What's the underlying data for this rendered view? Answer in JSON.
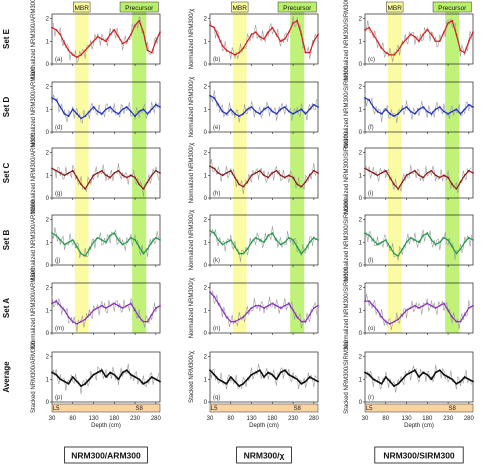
{
  "figure": {
    "row_labels": [
      "Set E",
      "Set D",
      "Set C",
      "Set B",
      "Set A",
      "Average"
    ],
    "column_footers": [
      "NRM300/ARM300",
      "NRM300/χ",
      "NRM300/SIRM300"
    ],
    "highlights": [
      {
        "label": "MBR",
        "x_range": [
          85,
          118
        ],
        "color": "#fbfb9a"
      },
      {
        "label": "Precursor",
        "x_range": [
          223,
          257
        ],
        "color": "#b9f06a"
      }
    ],
    "x_axis": {
      "label": "Depth (cm)",
      "ticks": [
        30,
        80,
        130,
        180,
        230,
        280
      ],
      "range": [
        30,
        290
      ]
    },
    "stage_bar": {
      "labels": [
        {
          "text": "L5",
          "x": 40
        },
        {
          "text": "S8",
          "x": 240
        }
      ],
      "color": "#f9d3a0"
    },
    "colors": {
      "Set E": "#d42020",
      "Set D": "#1f2fbf",
      "Set C": "#8b1a1a",
      "Set B": "#1d9a4a",
      "Set A": "#8a2fbf",
      "Average": "#111111",
      "raw": "#9a9a9a"
    }
  },
  "chart_data": {
    "type": "line",
    "x": [
      30,
      40,
      50,
      60,
      70,
      80,
      90,
      100,
      110,
      120,
      130,
      140,
      150,
      160,
      170,
      180,
      190,
      200,
      210,
      220,
      230,
      240,
      250,
      260,
      270,
      280,
      290
    ],
    "panels": [
      {
        "id": "a",
        "row": "Set E",
        "col": 0,
        "ylabel": "Normalized NRM300/ARM300",
        "yticks": [
          0,
          1,
          2
        ],
        "ylim": [
          0,
          2.2
        ],
        "smooth": [
          1.6,
          1.5,
          1.3,
          0.9,
          0.6,
          0.4,
          0.3,
          0.4,
          0.6,
          0.8,
          1.0,
          1.2,
          1.1,
          1.0,
          1.3,
          1.5,
          1.2,
          0.9,
          1.0,
          1.3,
          1.7,
          1.9,
          1.4,
          0.6,
          0.5,
          1.0,
          1.4
        ]
      },
      {
        "id": "b",
        "row": "Set E",
        "col": 1,
        "ylabel": "Normalized NRM300/χ",
        "yticks": [
          0,
          1,
          2
        ],
        "ylim": [
          0,
          2.2
        ],
        "smooth": [
          1.7,
          1.6,
          1.2,
          0.8,
          0.6,
          0.5,
          0.4,
          0.5,
          0.7,
          1.0,
          1.3,
          1.4,
          1.2,
          1.1,
          1.4,
          1.6,
          1.3,
          1.0,
          1.1,
          1.4,
          1.8,
          1.9,
          1.3,
          0.5,
          0.5,
          1.0,
          1.3
        ]
      },
      {
        "id": "c",
        "row": "Set E",
        "col": 2,
        "ylabel": "Normalized NRM300/SIRM300",
        "yticks": [
          0,
          1,
          2
        ],
        "ylim": [
          0,
          2.2
        ],
        "smooth": [
          1.5,
          1.6,
          1.3,
          1.0,
          0.7,
          0.5,
          0.4,
          0.4,
          0.6,
          0.9,
          1.1,
          1.3,
          1.2,
          1.0,
          1.3,
          1.5,
          1.3,
          1.0,
          1.0,
          1.4,
          1.8,
          1.9,
          1.3,
          0.6,
          0.5,
          1.0,
          1.4
        ]
      },
      {
        "id": "d",
        "row": "Set D",
        "col": 0,
        "ylabel": "Normalized NRM300/ARM300",
        "yticks": [
          0,
          1,
          2
        ],
        "ylim": [
          0,
          2.2
        ],
        "smooth": [
          1.5,
          1.4,
          1.1,
          0.8,
          0.7,
          1.0,
          0.8,
          0.6,
          0.7,
          0.9,
          1.1,
          0.9,
          0.8,
          1.0,
          1.1,
          0.9,
          0.8,
          1.0,
          1.1,
          0.9,
          0.7,
          0.9,
          1.0,
          0.8,
          1.0,
          1.2,
          1.1
        ]
      },
      {
        "id": "e",
        "row": "Set D",
        "col": 1,
        "ylabel": "Normalized NRM300/χ",
        "yticks": [
          0,
          1,
          2
        ],
        "ylim": [
          0,
          2.2
        ],
        "smooth": [
          1.6,
          1.5,
          1.2,
          0.9,
          0.8,
          1.0,
          0.8,
          0.7,
          0.8,
          1.0,
          1.1,
          0.9,
          0.8,
          1.0,
          1.1,
          0.9,
          0.8,
          1.0,
          1.1,
          0.9,
          0.8,
          0.9,
          1.0,
          0.8,
          1.0,
          1.2,
          1.1
        ]
      },
      {
        "id": "f",
        "row": "Set D",
        "col": 2,
        "ylabel": "Normalized NRM300/SIRM300",
        "yticks": [
          0,
          1,
          2
        ],
        "ylim": [
          0,
          2.2
        ],
        "smooth": [
          1.5,
          1.4,
          1.1,
          0.9,
          0.8,
          1.0,
          0.8,
          0.7,
          0.8,
          1.0,
          1.1,
          0.9,
          0.8,
          1.0,
          1.1,
          0.9,
          0.8,
          1.0,
          1.1,
          0.9,
          0.8,
          0.9,
          1.0,
          0.8,
          1.0,
          1.2,
          1.1
        ]
      },
      {
        "id": "g",
        "row": "Set C",
        "col": 0,
        "ylabel": "Normalized NRM300/ARM300",
        "yticks": [
          0,
          1,
          2
        ],
        "ylim": [
          0,
          2.2
        ],
        "smooth": [
          1.3,
          1.2,
          1.1,
          1.0,
          1.1,
          1.2,
          0.9,
          0.6,
          0.4,
          0.7,
          1.0,
          1.1,
          1.2,
          1.0,
          0.9,
          1.1,
          1.2,
          1.0,
          0.9,
          1.0,
          0.9,
          0.6,
          0.4,
          0.7,
          1.0,
          1.2,
          1.1
        ]
      },
      {
        "id": "h",
        "row": "Set C",
        "col": 1,
        "ylabel": "Normalized NRM300/χ",
        "yticks": [
          0,
          1,
          2
        ],
        "ylim": [
          0,
          2.2
        ],
        "smooth": [
          1.4,
          1.3,
          1.1,
          1.0,
          1.1,
          1.2,
          0.9,
          0.6,
          0.5,
          0.7,
          1.0,
          1.1,
          1.2,
          1.0,
          0.9,
          1.1,
          1.2,
          1.0,
          0.9,
          1.0,
          0.9,
          0.6,
          0.5,
          0.7,
          1.0,
          1.2,
          1.1
        ]
      },
      {
        "id": "i",
        "row": "Set C",
        "col": 2,
        "ylabel": "Normalized NRM300/SIRM300",
        "yticks": [
          0,
          1,
          2
        ],
        "ylim": [
          0,
          2.2
        ],
        "smooth": [
          1.3,
          1.2,
          1.1,
          1.0,
          1.1,
          1.2,
          0.9,
          0.6,
          0.4,
          0.7,
          1.0,
          1.1,
          1.2,
          1.0,
          0.9,
          1.1,
          1.2,
          1.0,
          0.9,
          1.0,
          0.9,
          0.6,
          0.4,
          0.7,
          1.0,
          1.2,
          1.1
        ]
      },
      {
        "id": "j",
        "row": "Set B",
        "col": 0,
        "ylabel": "Normalized NRM300/ARM300",
        "yticks": [
          0,
          1,
          2
        ],
        "ylim": [
          0,
          2.2
        ],
        "smooth": [
          1.4,
          1.3,
          1.1,
          0.9,
          1.0,
          1.1,
          0.8,
          0.5,
          0.4,
          0.7,
          1.0,
          1.2,
          1.1,
          1.0,
          1.3,
          1.4,
          1.1,
          0.9,
          1.0,
          1.2,
          1.1,
          0.8,
          0.5,
          0.7,
          1.0,
          1.2,
          1.1
        ]
      },
      {
        "id": "k",
        "row": "Set B",
        "col": 1,
        "ylabel": "Normalized NRM300/χ",
        "yticks": [
          0,
          1,
          2
        ],
        "ylim": [
          0,
          2.2
        ],
        "smooth": [
          1.5,
          1.4,
          1.1,
          0.9,
          1.0,
          1.1,
          0.8,
          0.5,
          0.5,
          0.7,
          1.0,
          1.2,
          1.1,
          1.0,
          1.3,
          1.4,
          1.1,
          0.9,
          1.0,
          1.2,
          1.1,
          0.8,
          0.5,
          0.7,
          1.0,
          1.2,
          1.1
        ]
      },
      {
        "id": "l",
        "row": "Set B",
        "col": 2,
        "ylabel": "Normalized NRM300/SIRM300",
        "yticks": [
          0,
          1,
          2
        ],
        "ylim": [
          0,
          2.2
        ],
        "smooth": [
          1.4,
          1.3,
          1.1,
          0.9,
          1.0,
          1.1,
          0.8,
          0.5,
          0.4,
          0.7,
          1.0,
          1.2,
          1.1,
          1.0,
          1.3,
          1.4,
          1.1,
          0.9,
          1.0,
          1.2,
          1.1,
          0.8,
          0.5,
          0.7,
          1.0,
          1.2,
          1.1
        ]
      },
      {
        "id": "m",
        "row": "Set A",
        "col": 0,
        "ylabel": "Normalized NRM300/ARM300",
        "yticks": [
          0,
          1,
          2
        ],
        "ylim": [
          0,
          2.2
        ],
        "smooth": [
          1.3,
          1.4,
          1.2,
          1.0,
          0.7,
          0.5,
          0.4,
          0.5,
          0.6,
          0.8,
          1.0,
          1.1,
          1.2,
          1.1,
          1.2,
          1.3,
          1.2,
          1.1,
          1.2,
          1.3,
          1.0,
          0.7,
          0.5,
          0.5,
          0.8,
          1.1,
          1.2
        ]
      },
      {
        "id": "n",
        "row": "Set A",
        "col": 1,
        "ylabel": "Normalized NRM300/χ",
        "yticks": [
          0,
          1,
          2
        ],
        "ylim": [
          0,
          2.2
        ],
        "smooth": [
          1.8,
          1.6,
          1.3,
          1.0,
          0.7,
          0.5,
          0.5,
          0.6,
          0.7,
          0.9,
          1.1,
          1.2,
          1.2,
          1.1,
          1.2,
          1.3,
          1.2,
          1.1,
          1.2,
          1.3,
          1.0,
          0.7,
          0.5,
          0.5,
          0.8,
          1.1,
          1.2
        ]
      },
      {
        "id": "o",
        "row": "Set A",
        "col": 2,
        "ylabel": "Normalized NRM300/SIRM300",
        "yticks": [
          0,
          1,
          2
        ],
        "ylim": [
          0,
          2.2
        ],
        "smooth": [
          1.4,
          1.4,
          1.2,
          1.0,
          0.7,
          0.5,
          0.4,
          0.5,
          0.6,
          0.8,
          1.0,
          1.1,
          1.2,
          1.1,
          1.2,
          1.3,
          1.2,
          1.1,
          1.2,
          1.3,
          1.0,
          0.7,
          0.5,
          0.5,
          0.8,
          1.1,
          1.2
        ]
      },
      {
        "id": "p",
        "row": "Average",
        "col": 0,
        "ylabel": "Stacked NRM300/ARM300",
        "yticks": [
          0,
          1,
          2
        ],
        "ylim": [
          0,
          2.2
        ],
        "smooth": [
          1.3,
          1.2,
          1.0,
          0.9,
          0.8,
          1.1,
          0.9,
          0.7,
          0.8,
          1.0,
          1.2,
          1.3,
          1.4,
          1.1,
          1.3,
          1.2,
          1.0,
          1.3,
          1.4,
          1.2,
          1.1,
          1.0,
          0.8,
          0.9,
          1.1,
          1.0,
          0.9
        ]
      },
      {
        "id": "q",
        "row": "Average",
        "col": 1,
        "ylabel": "Stacked NRM300/χ",
        "yticks": [
          0,
          1,
          2
        ],
        "ylim": [
          0,
          2.2
        ],
        "smooth": [
          1.4,
          1.2,
          1.0,
          0.9,
          0.8,
          1.1,
          0.9,
          0.7,
          0.8,
          1.0,
          1.2,
          1.3,
          1.4,
          1.1,
          1.3,
          1.2,
          1.0,
          1.3,
          1.4,
          1.2,
          1.1,
          1.0,
          0.8,
          0.9,
          1.1,
          1.0,
          0.9
        ]
      },
      {
        "id": "r",
        "row": "Average",
        "col": 2,
        "ylabel": "Stacked NRM300/SIRM300",
        "yticks": [
          0,
          1,
          2
        ],
        "ylim": [
          0,
          2.2
        ],
        "smooth": [
          1.3,
          1.2,
          1.0,
          0.9,
          0.8,
          1.1,
          0.9,
          0.7,
          0.8,
          1.0,
          1.2,
          1.3,
          1.4,
          1.1,
          1.3,
          1.2,
          1.0,
          1.3,
          1.4,
          1.2,
          1.1,
          1.0,
          0.8,
          0.9,
          1.1,
          1.0,
          0.9
        ]
      }
    ]
  }
}
